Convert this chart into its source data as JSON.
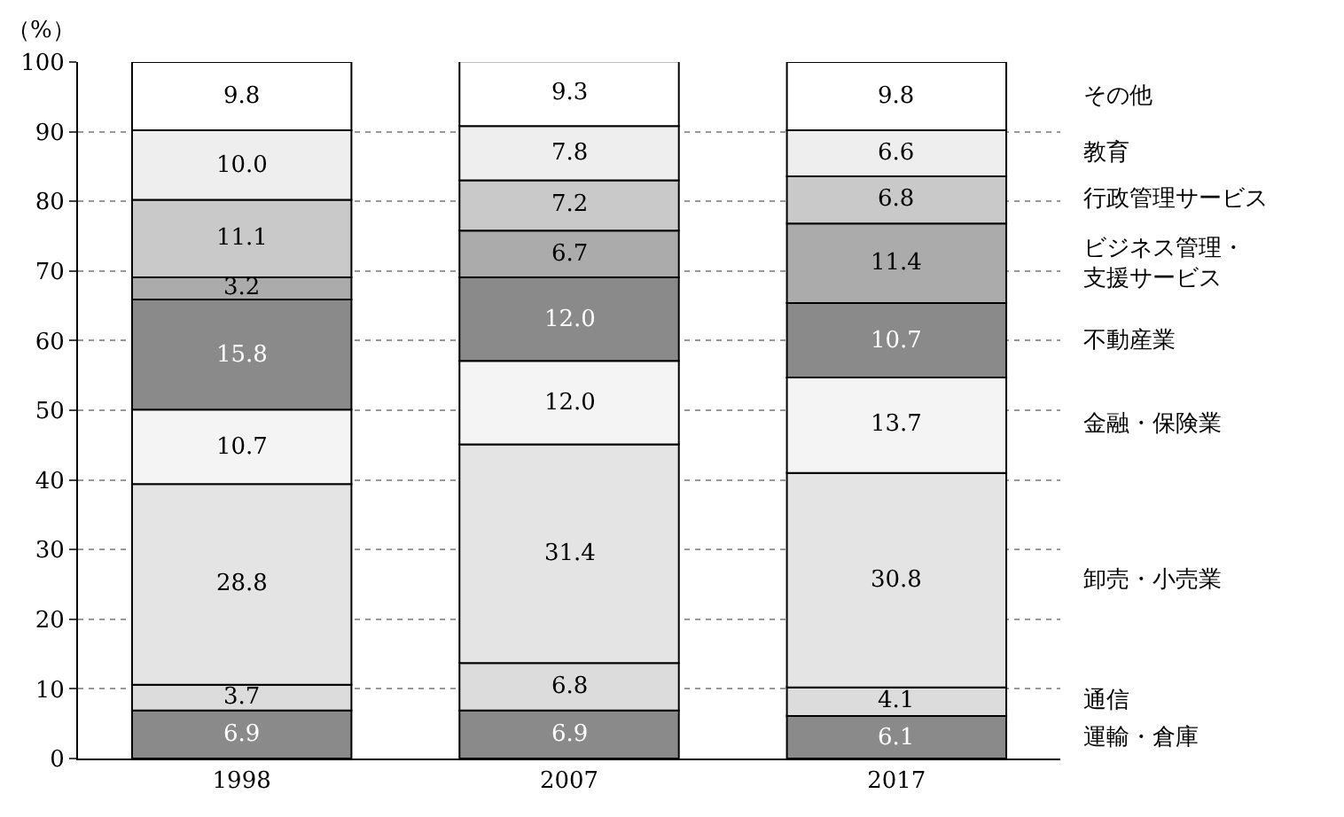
{
  "chart_data": {
    "type": "bar",
    "stacked": true,
    "ylabel": "（%）",
    "categories": [
      "1998",
      "2007",
      "2017"
    ],
    "ylim": [
      0,
      100
    ],
    "yticks": [
      0,
      10,
      20,
      30,
      40,
      50,
      60,
      70,
      80,
      90,
      100
    ],
    "grid": "y",
    "legend": false,
    "series": [
      {
        "name": "運輸・倉庫",
        "color": "#8a8a8a",
        "values": [
          6.9,
          6.9,
          6.1
        ],
        "value_labels": [
          "6.9",
          "6.9",
          "6.1"
        ]
      },
      {
        "name": "通信",
        "color": "#dcdcdc",
        "values": [
          3.7,
          6.8,
          4.1
        ],
        "value_labels": [
          "3.7",
          "6.8",
          "4.1"
        ]
      },
      {
        "name": "卸売・小売業",
        "color": "#e4e4e4",
        "values": [
          28.8,
          31.4,
          30.8
        ],
        "value_labels": [
          "28.8",
          "31.4",
          "30.8"
        ]
      },
      {
        "name": "金融・保険業",
        "color": "#f4f4f4",
        "values": [
          10.7,
          12.0,
          13.7
        ],
        "value_labels": [
          "10.7",
          "12.0",
          "13.7"
        ]
      },
      {
        "name": "不動産業",
        "color": "#8a8a8a",
        "values": [
          15.8,
          12.0,
          10.7
        ],
        "value_labels": [
          "15.8",
          "12.0",
          "10.7"
        ]
      },
      {
        "name": "ビジネス管理・支援サービス",
        "color": "#ababab",
        "values": [
          3.2,
          6.7,
          11.4
        ],
        "value_labels": [
          "3.2",
          "6.7",
          "11.4"
        ]
      },
      {
        "name": "行政管理サービス",
        "color": "#c9c9c9",
        "values": [
          11.1,
          7.2,
          6.8
        ],
        "value_labels": [
          "11.1",
          "7.2",
          "6.8"
        ]
      },
      {
        "name": "教育",
        "color": "#eeeeee",
        "values": [
          10.0,
          7.8,
          6.6
        ],
        "value_labels": [
          "10.0",
          "7.8",
          "6.6"
        ]
      },
      {
        "name": "その他",
        "color": "#ffffff",
        "values": [
          9.8,
          9.3,
          9.8
        ],
        "value_labels": [
          "9.8",
          "9.3",
          "9.8"
        ]
      }
    ]
  }
}
